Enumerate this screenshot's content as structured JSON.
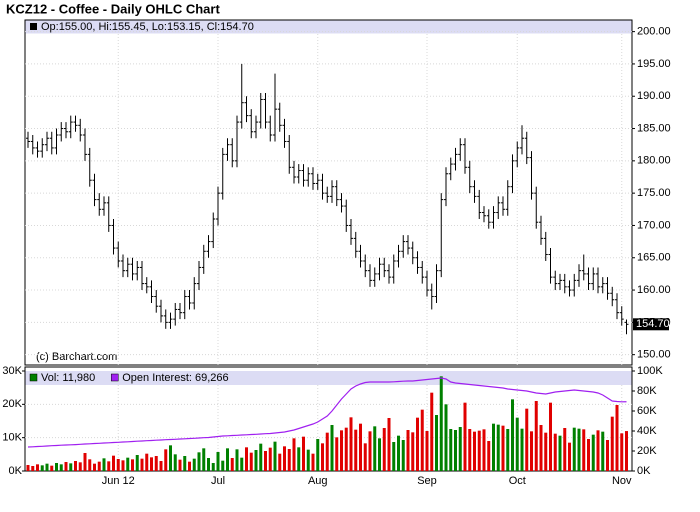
{
  "chart_data": [
    {
      "type": "ohlc",
      "title": "KCZ12 - Coffee - Daily OHLC Chart",
      "header": "Op:155.00, Hi:155.45, Lo:153.15, Cl:154.70",
      "watermark": "(c) Barchart.com",
      "last_price_label": "154.70",
      "color": "#000000",
      "grid": true,
      "categories": [
        null,
        null,
        null,
        null,
        null,
        null,
        null,
        null,
        null,
        null,
        null,
        null,
        null,
        null,
        null,
        null,
        null,
        null,
        null,
        "Jun 12",
        null,
        null,
        null,
        null,
        null,
        null,
        null,
        null,
        null,
        null,
        null,
        null,
        null,
        null,
        null,
        null,
        null,
        null,
        null,
        null,
        "Jul",
        null,
        null,
        null,
        null,
        null,
        null,
        null,
        null,
        null,
        null,
        null,
        null,
        null,
        null,
        null,
        null,
        null,
        null,
        null,
        null,
        "Aug",
        null,
        null,
        null,
        null,
        null,
        null,
        null,
        null,
        null,
        null,
        null,
        null,
        null,
        null,
        null,
        null,
        null,
        null,
        null,
        null,
        null,
        null,
        "Sep",
        null,
        null,
        null,
        null,
        null,
        null,
        null,
        null,
        null,
        null,
        null,
        null,
        null,
        null,
        null,
        null,
        null,
        null,
        "Oct",
        null,
        null,
        null,
        null,
        null,
        null,
        null,
        null,
        null,
        null,
        null,
        null,
        null,
        null,
        null,
        null,
        null,
        null,
        null,
        null,
        null,
        "Nov",
        null
      ],
      "open": [
        183.5,
        183,
        182,
        181.5,
        182.5,
        183.5,
        182,
        184,
        185,
        184.5,
        186,
        185.5,
        184,
        181,
        177,
        174,
        172.5,
        173.5,
        170,
        166.5,
        164.5,
        163,
        164,
        162.5,
        163.5,
        161,
        160.5,
        159,
        157.5,
        156,
        155,
        155.5,
        157,
        156.5,
        159,
        158,
        161,
        163.5,
        166,
        167.5,
        171,
        175,
        181,
        182.5,
        180,
        186,
        189,
        187,
        184.5,
        186,
        189.5,
        186,
        184,
        188,
        185.5,
        183,
        179,
        177.5,
        178.5,
        177,
        178,
        176.5,
        177,
        175,
        174.5,
        176,
        174,
        173,
        170,
        168,
        166,
        164.5,
        163,
        161.5,
        162.5,
        164,
        163,
        162,
        164.5,
        166,
        167.5,
        166.5,
        165,
        163.5,
        162,
        160,
        159,
        163,
        174,
        178,
        179.5,
        181,
        182.5,
        179,
        176,
        174.5,
        172,
        171.5,
        170.5,
        172,
        173.5,
        172.5,
        176,
        180,
        182,
        183.5,
        180.5,
        175,
        170.5,
        168,
        165.5,
        162,
        161,
        161.5,
        160.5,
        160,
        161.5,
        163,
        162.5,
        161,
        162.5,
        160.5,
        161,
        159.5,
        158.5,
        156.5,
        155
      ],
      "high": [
        184.5,
        184,
        183,
        183.5,
        184.5,
        184.5,
        185,
        186,
        186,
        187,
        187,
        186.5,
        185,
        182,
        178,
        175,
        174.5,
        174.5,
        171,
        167.5,
        165.5,
        165,
        165,
        164.5,
        164.5,
        162,
        161.5,
        160,
        158.5,
        157,
        156.5,
        158,
        158,
        160,
        160,
        162,
        164.5,
        167,
        168.5,
        172,
        176,
        182,
        183.5,
        183.5,
        187,
        195,
        190,
        188,
        187,
        190.5,
        190.5,
        187,
        193.5,
        189,
        186.5,
        184,
        180,
        179.5,
        179.5,
        179,
        179,
        178,
        178,
        176,
        177,
        177,
        175,
        174,
        171,
        169,
        167,
        165.5,
        164,
        163.5,
        165,
        165,
        164,
        165.5,
        167,
        168.5,
        168.5,
        167.5,
        166,
        164.5,
        163,
        161,
        164,
        175,
        179,
        180.5,
        182,
        183.5,
        183.5,
        180,
        177,
        175.5,
        173,
        172.5,
        173,
        174.5,
        174.5,
        177,
        181,
        183,
        185.5,
        184.5,
        181.5,
        176,
        171.5,
        169,
        166.5,
        163,
        162.5,
        162.5,
        161.5,
        162.5,
        164,
        165.5,
        163.5,
        163.5,
        163.5,
        162,
        162,
        160.5,
        159.5,
        157.5,
        155.45
      ],
      "low": [
        182,
        181,
        180.5,
        180.5,
        181.5,
        181,
        181,
        183,
        183.5,
        183.5,
        184.5,
        183,
        180,
        176,
        173,
        171.5,
        171.5,
        169,
        165.5,
        163.5,
        162,
        162,
        161.5,
        161.5,
        160,
        159.5,
        158,
        156.5,
        155,
        154,
        154,
        154.5,
        155.5,
        155.5,
        157,
        157,
        160,
        162.5,
        165,
        166.5,
        170,
        174,
        180,
        179,
        179,
        185,
        186,
        183.5,
        183.5,
        185,
        185,
        183,
        183,
        184.5,
        182,
        178,
        176.5,
        176.5,
        176,
        176,
        175.5,
        175.5,
        174,
        173.5,
        173.5,
        173,
        172,
        169,
        167,
        165,
        163.5,
        162,
        160.5,
        160.5,
        161.5,
        162,
        161,
        161,
        163.5,
        165,
        165.5,
        164,
        162.5,
        161,
        159,
        157,
        158,
        162,
        173,
        177,
        178.5,
        180,
        178,
        175,
        173.5,
        171,
        170.5,
        169.5,
        169.5,
        171,
        171.5,
        171.5,
        175,
        179,
        181,
        179.5,
        174,
        169.5,
        167,
        164.5,
        161,
        160,
        160,
        159.5,
        159,
        159,
        160.5,
        161.5,
        160,
        160,
        159.5,
        159.5,
        158.5,
        157.5,
        155.5,
        154.5,
        153.15
      ],
      "close": [
        183,
        182,
        181.5,
        182.5,
        183.5,
        182,
        184,
        185,
        184.5,
        186,
        185.5,
        184,
        181,
        177,
        174,
        172.5,
        173.5,
        170,
        166.5,
        164.5,
        163,
        164,
        162.5,
        163.5,
        161,
        160.5,
        159,
        157.5,
        156,
        155,
        155.5,
        157,
        156.5,
        159,
        158,
        161,
        163.5,
        166,
        167.5,
        171,
        175,
        181,
        182.5,
        180,
        186,
        189,
        187,
        184.5,
        186,
        189.5,
        186,
        184,
        188,
        185.5,
        183,
        179,
        177.5,
        178.5,
        177,
        178,
        176.5,
        177,
        175,
        174.5,
        176,
        174,
        173,
        170,
        168,
        166,
        164.5,
        163,
        161.5,
        162.5,
        164,
        163,
        162,
        164.5,
        166,
        167.5,
        166.5,
        165,
        163.5,
        162,
        160,
        159,
        163,
        174,
        178,
        179.5,
        181,
        182.5,
        179,
        176,
        174.5,
        172,
        171.5,
        170.5,
        172,
        173.5,
        172.5,
        176,
        180,
        182,
        183.5,
        180.5,
        175,
        170.5,
        168,
        165.5,
        162,
        161,
        161.5,
        160.5,
        160,
        161.5,
        163,
        162.5,
        161,
        162.5,
        160.5,
        161,
        159.5,
        158.5,
        156.5,
        155.5,
        154.7
      ],
      "ylim": [
        148.4,
        201.8
      ],
      "yticks": [
        {
          "value": 150,
          "label": "150.00"
        },
        {
          "value": 155,
          "label": "155.00"
        },
        {
          "value": 160,
          "label": "160.00"
        },
        {
          "value": 165,
          "label": "165.00"
        },
        {
          "value": 170,
          "label": "170.00"
        },
        {
          "value": 175,
          "label": "175.00"
        },
        {
          "value": 180,
          "label": "180.00"
        },
        {
          "value": 185,
          "label": "185.00"
        },
        {
          "value": 190,
          "label": "190.00"
        },
        {
          "value": 195,
          "label": "195.00"
        },
        {
          "value": 200,
          "label": "200.00"
        }
      ]
    },
    {
      "type": "volume",
      "up_color": "#008000",
      "down_color": "#e00000",
      "grid": true,
      "series": [
        {
          "name": "Vol: 11,980",
          "color": "#008000",
          "values": [
            1800,
            1500,
            2000,
            1700,
            2200,
            1600,
            2400,
            2000,
            2700,
            2300,
            3000,
            2600,
            5400,
            3500,
            2200,
            2800,
            3800,
            2900,
            4600,
            3600,
            3200,
            4000,
            3500,
            4800,
            3700,
            5200,
            4100,
            4500,
            3000,
            6500,
            7700,
            5000,
            3400,
            4500,
            2800,
            3700,
            5600,
            6800,
            3900,
            2400,
            5700,
            3100,
            6800,
            3900,
            6500,
            4000,
            7100,
            5500,
            6300,
            8200,
            6000,
            7000,
            8800,
            5200,
            7400,
            6600,
            9800,
            7100,
            10300,
            6400,
            5200,
            9600,
            8300,
            11500,
            13800,
            10100,
            12200,
            13000,
            16100,
            12400,
            14200,
            8300,
            11900,
            13400,
            9800,
            12900,
            15900,
            8700,
            10600,
            9300,
            12300,
            11600,
            16000,
            18400,
            12000,
            23500,
            16800,
            28400,
            20000,
            12600,
            12300,
            13200,
            20500,
            12600,
            11800,
            12100,
            12500,
            9000,
            14200,
            13900,
            13600,
            12600,
            21500,
            16000,
            12700,
            18700,
            11900,
            21000,
            13800,
            11500,
            20500,
            11200,
            10600,
            12900,
            8500,
            13000,
            12700,
            12500,
            9600,
            10900,
            12200,
            11800,
            9300,
            16300,
            19800,
            11300,
            11980
          ]
        },
        {
          "name": "Open Interest: 69,266",
          "color": "#a020f0",
          "axis": "y2",
          "values": [
            24000,
            24200,
            24500,
            24700,
            25000,
            25300,
            25500,
            25800,
            26000,
            26200,
            26400,
            26700,
            27000,
            27200,
            27500,
            27700,
            28000,
            28200,
            28500,
            28700,
            29000,
            29200,
            29500,
            29800,
            30000,
            30300,
            30500,
            30800,
            31000,
            31300,
            31500,
            31700,
            32000,
            32200,
            32500,
            32700,
            33000,
            33300,
            33500,
            34000,
            34500,
            35000,
            35200,
            35500,
            35700,
            36000,
            36200,
            36500,
            36700,
            37000,
            37300,
            37500,
            38000,
            38500,
            39000,
            40000,
            41000,
            42500,
            44000,
            45500,
            47000,
            49000,
            52000,
            55000,
            60000,
            66000,
            72000,
            77000,
            82000,
            85000,
            87000,
            88500,
            89000,
            89000,
            89000,
            89000,
            89000,
            89200,
            89500,
            89800,
            90000,
            90000,
            90500,
            91000,
            91500,
            92000,
            92500,
            93000,
            92000,
            89000,
            88000,
            87500,
            87000,
            86500,
            86000,
            85500,
            85000,
            84500,
            84000,
            83500,
            83000,
            82000,
            81500,
            81000,
            80500,
            80000,
            79000,
            78000,
            77500,
            77000,
            78000,
            79000,
            79500,
            80000,
            80500,
            81000,
            80500,
            80000,
            79500,
            79000,
            78000,
            76000,
            73000,
            70000,
            69500,
            69200,
            69266
          ]
        }
      ],
      "ylim": [
        0,
        30000
      ],
      "yticks": [
        {
          "value": 0,
          "label": "0K"
        },
        {
          "value": 10000,
          "label": "10K"
        },
        {
          "value": 20000,
          "label": "20K"
        },
        {
          "value": 30000,
          "label": "30K"
        }
      ],
      "y2lim": [
        0,
        100000
      ],
      "y2ticks": [
        {
          "value": 0,
          "label": "0K"
        },
        {
          "value": 20000,
          "label": "20K"
        },
        {
          "value": 40000,
          "label": "40K"
        },
        {
          "value": 60000,
          "label": "60K"
        },
        {
          "value": 80000,
          "label": "80K"
        },
        {
          "value": 100000,
          "label": "100K"
        }
      ]
    }
  ]
}
